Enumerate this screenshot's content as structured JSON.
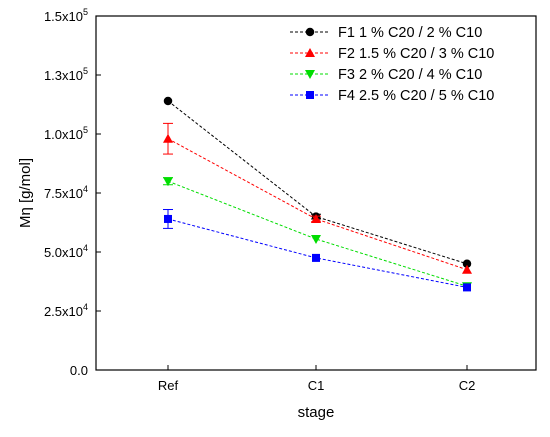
{
  "chart_data": {
    "type": "line",
    "title": "",
    "xlabel": "stage",
    "ylabel": "Mη [g/mol]",
    "categories": [
      "Ref",
      "C1",
      "C2"
    ],
    "ylim": [
      0,
      150000
    ],
    "y_ticks": [
      {
        "value": 0,
        "mantissa": "0.0",
        "exponent": ""
      },
      {
        "value": 25000,
        "mantissa": "2.5x10",
        "exponent": "4"
      },
      {
        "value": 50000,
        "mantissa": "5.0x10",
        "exponent": "4"
      },
      {
        "value": 75000,
        "mantissa": "7.5x10",
        "exponent": "4"
      },
      {
        "value": 100000,
        "mantissa": "1.0x10",
        "exponent": "5"
      },
      {
        "value": 125000,
        "mantissa": "1.3x10",
        "exponent": "5"
      },
      {
        "value": 150000,
        "mantissa": "1.5x10",
        "exponent": "5"
      }
    ],
    "grid": false,
    "legend_position": "top-right",
    "series": [
      {
        "name": "F1 1 % C20 / 2 % C10",
        "color": "#000000",
        "marker": "circle",
        "values": [
          114000,
          65000,
          45000
        ],
        "errors": [
          0,
          1000,
          0
        ]
      },
      {
        "name": "F2 1.5 % C20 / 3 % C10",
        "color": "#ff0000",
        "marker": "triangle-up",
        "values": [
          98000,
          64000,
          42500
        ],
        "errors": [
          6500,
          1200,
          0
        ]
      },
      {
        "name": "F3 2 % C20 / 4 % C10",
        "color": "#00dd00",
        "marker": "triangle-down",
        "values": [
          80000,
          55500,
          35500
        ],
        "errors": [
          1500,
          0,
          0
        ]
      },
      {
        "name": "F4 2.5 % C20 / 5 % C10",
        "color": "#0000ff",
        "marker": "square",
        "values": [
          64000,
          47500,
          35000
        ],
        "errors": [
          4000,
          0,
          0
        ]
      }
    ]
  }
}
